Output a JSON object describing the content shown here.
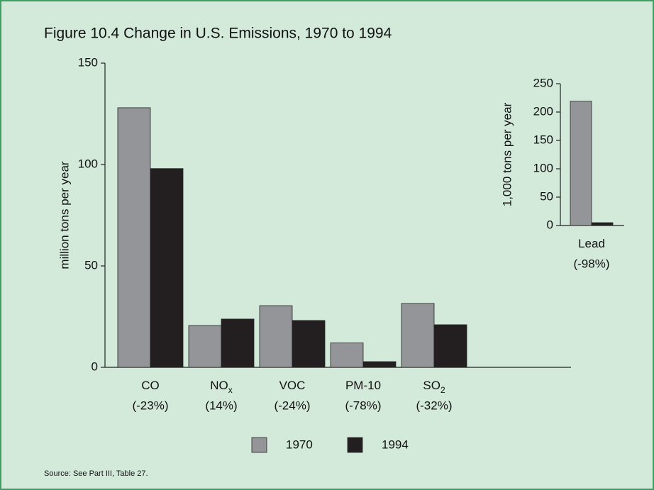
{
  "chart_data": [
    {
      "type": "bar",
      "title": "Figure 10.4  Change in U.S. Emissions, 1970 to 1994",
      "source": "Source: See Part III, Table 27.",
      "ylabel": "million tons per year",
      "categories": [
        "CO",
        "NO",
        "VOC",
        "PM-10",
        "SO"
      ],
      "category_subscripts": [
        null,
        "x",
        null,
        null,
        "2"
      ],
      "category_notes": [
        "(-23%)",
        "(14%)",
        "(-24%)",
        "(-78%)",
        "(-32%)"
      ],
      "series": [
        {
          "name": "1970",
          "color": "#939598",
          "values": [
            128,
            20.6,
            30.4,
            12,
            31.5
          ]
        },
        {
          "name": "1994",
          "color": "#231f20",
          "values": [
            98,
            23.8,
            23.1,
            2.8,
            21
          ]
        }
      ],
      "ylim": [
        0,
        150
      ],
      "yticks": [
        0,
        50,
        100,
        150
      ]
    },
    {
      "type": "bar",
      "ylabel": "1,000 tons per year",
      "categories": [
        "Lead"
      ],
      "category_notes": [
        "(-98%)"
      ],
      "series": [
        {
          "color": "#939598",
          "values": [
            219
          ]
        },
        {
          "color": "#231f20",
          "values": [
            5
          ]
        }
      ],
      "ylim": [
        0,
        250
      ],
      "yticks": [
        0,
        50,
        100,
        150,
        200,
        250
      ]
    }
  ]
}
